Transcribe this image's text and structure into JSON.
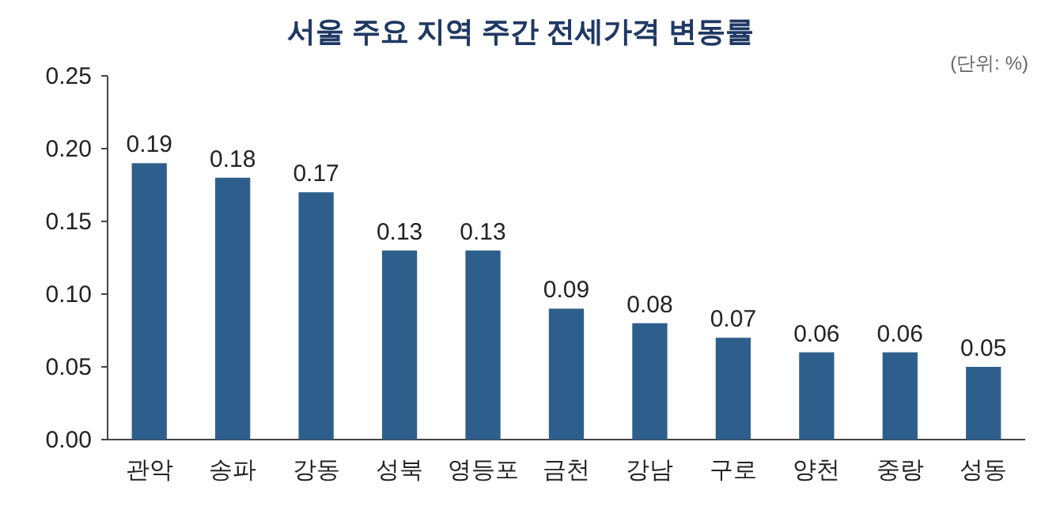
{
  "chart_data": {
    "type": "bar",
    "title": "서울 주요 지역 주간 전세가격 변동률",
    "annotations": [
      "(단위: %)"
    ],
    "categories": [
      "관악",
      "송파",
      "강동",
      "성북",
      "영등포",
      "금천",
      "강남",
      "구로",
      "양천",
      "중랑",
      "성동"
    ],
    "values": [
      0.19,
      0.18,
      0.17,
      0.13,
      0.13,
      0.09,
      0.08,
      0.07,
      0.06,
      0.06,
      0.05
    ],
    "color": "#2e5f8c",
    "ylim": [
      0,
      0.25
    ],
    "yticks": [
      {
        "value": 0,
        "label": "0.00"
      },
      {
        "value": 0.05,
        "label": "0.05"
      },
      {
        "value": 0.1,
        "label": "0.10"
      },
      {
        "value": 0.15,
        "label": "0.15"
      },
      {
        "value": 0.2,
        "label": "0.20"
      },
      {
        "value": 0.25,
        "label": "0.25"
      }
    ],
    "data_labels": true,
    "grid": false
  }
}
